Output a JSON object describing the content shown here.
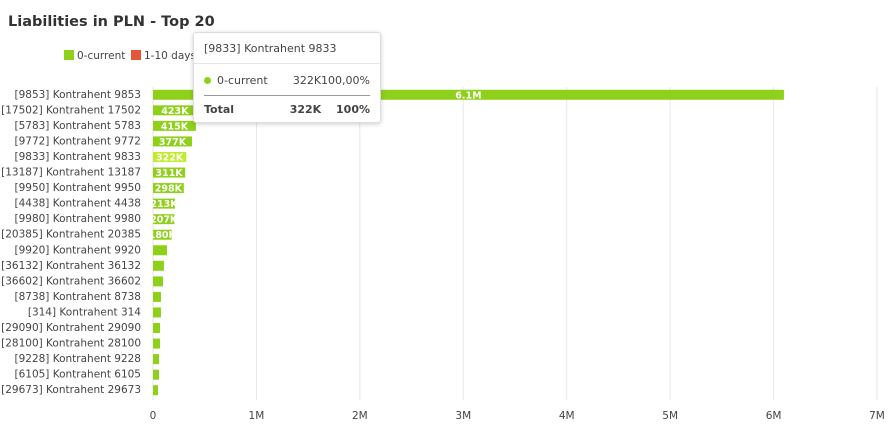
{
  "chart_data": {
    "type": "hbar",
    "title": "Liabilities in PLN - Top 20",
    "categories": [
      "[9853] Kontrahent 9853",
      "[17502] Kontrahent 17502",
      "[5783] Kontrahent 5783",
      "[9772] Kontrahent 9772",
      "[9833] Kontrahent 9833",
      "[13187] Kontrahent 13187",
      "[9950] Kontrahent 9950",
      "[4438] Kontrahent 4438",
      "[9980] Kontrahent 9980",
      "[20385] Kontrahent 20385",
      "[9920] Kontrahent 9920",
      "[36132] Kontrahent 36132",
      "[36602] Kontrahent 36602",
      "[8738] Kontrahent 8738",
      "[314] Kontrahent 314",
      "[29090] Kontrahent 29090",
      "[28100] Kontrahent 28100",
      "[9228] Kontrahent 9228",
      "[6105] Kontrahent 6105",
      "[29673] Kontrahent 29673"
    ],
    "series": [
      {
        "name": "0-current",
        "color": "#8fd11a",
        "highlight_color": "#c0ec2a",
        "values": [
          6100000,
          423000,
          415000,
          377000,
          322000,
          311000,
          298000,
          213000,
          207000,
          180000,
          135000,
          106000,
          97000,
          77000,
          77000,
          68000,
          68000,
          58000,
          58000,
          48000
        ],
        "value_labels": [
          "6.1M",
          "423K",
          "415K",
          "377K",
          "322K",
          "311K",
          "298K",
          "213K",
          "207K",
          "180K",
          null,
          null,
          null,
          null,
          null,
          null,
          null,
          null,
          null,
          null
        ]
      },
      {
        "name": "1-10 days",
        "color": "#e4553a",
        "values": [
          null,
          null,
          null,
          null,
          null,
          null,
          null,
          null,
          null,
          null,
          null,
          null,
          null,
          null,
          null,
          null,
          null,
          null,
          null,
          null
        ]
      }
    ],
    "xlim": [
      0,
      7000000
    ],
    "xticks": [
      0,
      {
        "value": 1000000,
        "label": "1M"
      },
      {
        "value": 2000000,
        "label": "2M"
      },
      {
        "value": 3000000,
        "label": "3M"
      },
      {
        "value": 4000000,
        "label": "4M"
      },
      {
        "value": 5000000,
        "label": "5M"
      },
      {
        "value": 6000000,
        "label": "6M"
      },
      {
        "value": 7000000,
        "label": "7M"
      }
    ],
    "grid": true,
    "highlighted": 4,
    "tooltip": {
      "title": "[9833] Kontrahent 9833",
      "series": "0-current",
      "value": "322K",
      "share": "100,00%",
      "total_label": "Total",
      "total_value": "322K",
      "total_share": "100%"
    }
  }
}
